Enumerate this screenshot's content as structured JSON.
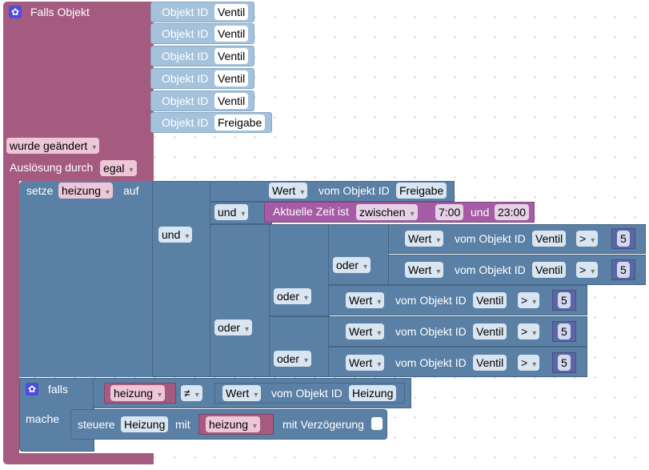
{
  "trigger": {
    "title": "Falls Objekt",
    "objects": [
      {
        "label": "Objekt ID",
        "value": "Ventil"
      },
      {
        "label": "Objekt ID",
        "value": "Ventil"
      },
      {
        "label": "Objekt ID",
        "value": "Ventil"
      },
      {
        "label": "Objekt ID",
        "value": "Ventil"
      },
      {
        "label": "Objekt ID",
        "value": "Ventil"
      },
      {
        "label": "Objekt ID",
        "value": "Freigabe"
      }
    ],
    "changed": "wurde geändert",
    "cause_label": "Auslösung durch",
    "cause_value": "egal"
  },
  "setze": {
    "label": "setze",
    "var": "heizung",
    "on": "auf"
  },
  "und_outer": "und",
  "und_inner": "und",
  "row_freigabe": {
    "wert": "Wert",
    "vom": "vom Objekt ID",
    "obj": "Freigabe"
  },
  "time": {
    "label": "Aktuelle Zeit ist",
    "mode": "zwischen",
    "from": "7:00",
    "und": "und",
    "to": "23:00"
  },
  "oder_outer": "oder",
  "oder_a": "oder",
  "oder_b": "oder",
  "oder_c": "oder",
  "comparisons": [
    {
      "wert": "Wert",
      "vom": "vom Objekt ID",
      "obj": "Ventil",
      "op": ">",
      "num": "5"
    },
    {
      "wert": "Wert",
      "vom": "vom Objekt ID",
      "obj": "Ventil",
      "op": ">",
      "num": "5"
    },
    {
      "wert": "Wert",
      "vom": "vom Objekt ID",
      "obj": "Ventil",
      "op": ">",
      "num": "5"
    },
    {
      "wert": "Wert",
      "vom": "vom Objekt ID",
      "obj": "Ventil",
      "op": ">",
      "num": "5"
    },
    {
      "wert": "Wert",
      "vom": "vom Objekt ID",
      "obj": "Ventil",
      "op": ">",
      "num": "5"
    }
  ],
  "falls": {
    "label": "falls",
    "var": "heizung",
    "op": "≠",
    "wert": "Wert",
    "vom": "vom Objekt ID",
    "obj": "Heizung"
  },
  "mache": {
    "label": "mache",
    "steuere": "steuere",
    "obj": "Heizung",
    "mit": "mit",
    "var": "heizung",
    "delay": "mit Verzögerung"
  },
  "colors": {
    "trigger": "#a55b80",
    "logic": "#5b80a5",
    "sensor": "#a5c2dc",
    "time": "#a55ba5",
    "math": "#5b67a5",
    "gear": "#4c4cdd"
  }
}
